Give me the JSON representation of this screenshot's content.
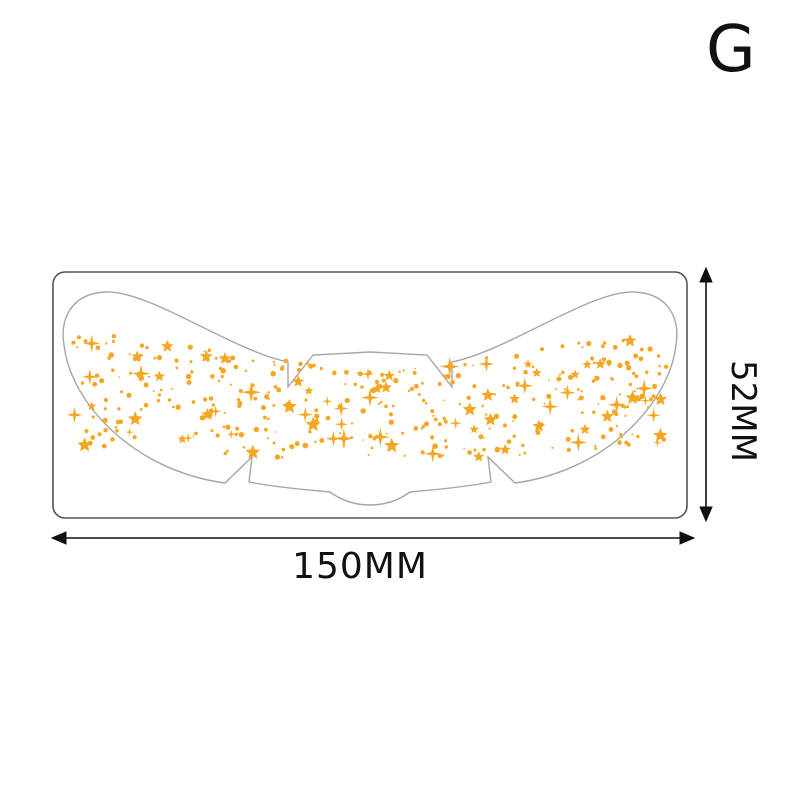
{
  "variant_label": "G",
  "dimensions": {
    "width_label": "150MM",
    "height_label": "52MM"
  },
  "colors": {
    "star_color": "#F5A623",
    "outline_color": "#A9A4A8",
    "frame_color": "#555555"
  },
  "icons": [
    "star-icon",
    "sparkle-icon",
    "dot-icon",
    "arrow-left-icon",
    "arrow-right-icon",
    "arrow-up-icon",
    "arrow-down-icon"
  ]
}
